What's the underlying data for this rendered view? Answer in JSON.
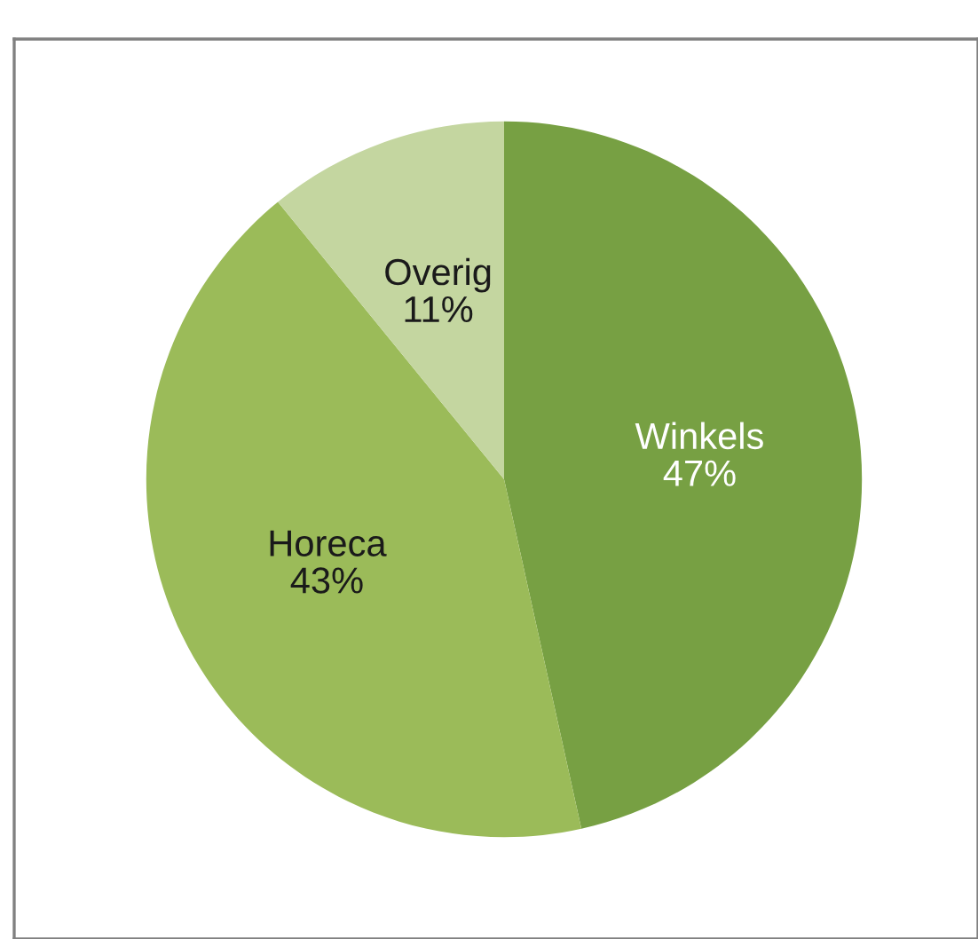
{
  "chart_data": {
    "type": "pie",
    "categories": [
      "Winkels",
      "Horeca",
      "Overig"
    ],
    "values": [
      47,
      43,
      11
    ],
    "value_labels": [
      "47%",
      "43%",
      "11%"
    ],
    "colors": [
      "#77a043",
      "#9bbb59",
      "#c4d6a0"
    ],
    "legend": false
  }
}
